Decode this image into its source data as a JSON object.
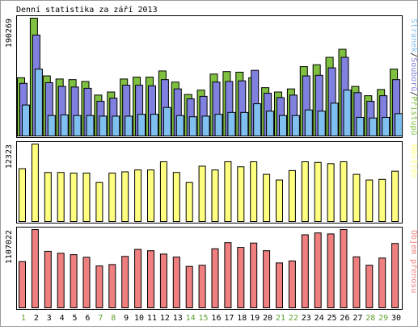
{
  "chart_data": {
    "type": "bar",
    "title": "Denní statistika za září 2013",
    "categories": [
      "1",
      "2",
      "3",
      "4",
      "5",
      "6",
      "7",
      "8",
      "9",
      "10",
      "11",
      "12",
      "13",
      "14",
      "15",
      "16",
      "17",
      "18",
      "19",
      "20",
      "21",
      "22",
      "23",
      "24",
      "25",
      "26",
      "27",
      "28",
      "29",
      "30"
    ],
    "weekend_days": [
      "1",
      "7",
      "8",
      "14",
      "15",
      "21",
      "22",
      "28",
      "29"
    ],
    "panels": [
      {
        "name": "top",
        "ymax_label": "190269",
        "ymax": 190269,
        "series": [
          {
            "name": "Přístupů",
            "color": "#80c040",
            "values": [
              94000,
              190269,
              97000,
              92000,
              91000,
              88000,
              66000,
              71000,
              92000,
              95000,
              95000,
              105000,
              87000,
              67000,
              74000,
              100000,
              104000,
              103000,
              94000,
              78000,
              71000,
              76000,
              112000,
              115000,
              127000,
              140000,
              80000,
              65000,
              75000,
              108000
            ]
          },
          {
            "name": "Souborů",
            "color": "#8080e0",
            "values": [
              85000,
              163000,
              86000,
              80000,
              79000,
              77000,
              56000,
              61000,
              82000,
              82000,
              81000,
              91000,
              76000,
              60000,
              64000,
              87000,
              88000,
              89000,
              106000,
              69000,
              62000,
              66000,
              97000,
              98000,
              110000,
              127000,
              70000,
              56000,
              65000,
              91000
            ]
          },
          {
            "name": "Stránek",
            "color": "#80c0f0",
            "values": [
              50000,
              108000,
              33000,
              34000,
              33000,
              33000,
              32000,
              32000,
              32000,
              35000,
              35000,
              46000,
              33000,
              31000,
              32000,
              35000,
              38000,
              38000,
              52000,
              40000,
              33000,
              33000,
              42000,
              40000,
              53000,
              74000,
              30000,
              29000,
              30000,
              36000
            ]
          }
        ]
      },
      {
        "name": "middle",
        "ymax_label": "12323",
        "ymax": 12323,
        "series": [
          {
            "name": "Návštěv",
            "color": "#ffff80",
            "values": [
              8400,
              12323,
              7800,
              7800,
              7700,
              7700,
              6200,
              7700,
              7900,
              8200,
              8200,
              9500,
              7800,
              6200,
              8800,
              8200,
              9500,
              8700,
              9500,
              7500,
              6600,
              8100,
              9500,
              9400,
              9200,
              9500,
              7500,
              6600,
              6700,
              8000
            ]
          }
        ]
      },
      {
        "name": "bottom",
        "ymax_label": "1107022",
        "ymax": 1107022,
        "series": [
          {
            "name": "Objem přenosu",
            "color": "#f08080",
            "values": [
              654000,
              1107022,
              800000,
              771000,
              752000,
              715000,
              592000,
              612000,
              727000,
              826000,
              808000,
              760000,
              718000,
              586000,
              602000,
              835000,
              922000,
              855000,
              916000,
              808000,
              635000,
              663000,
              1033000,
              1059000,
              1045000,
              1107022,
              721000,
              602000,
              704000,
              910000
            ]
          }
        ]
      }
    ]
  }
}
